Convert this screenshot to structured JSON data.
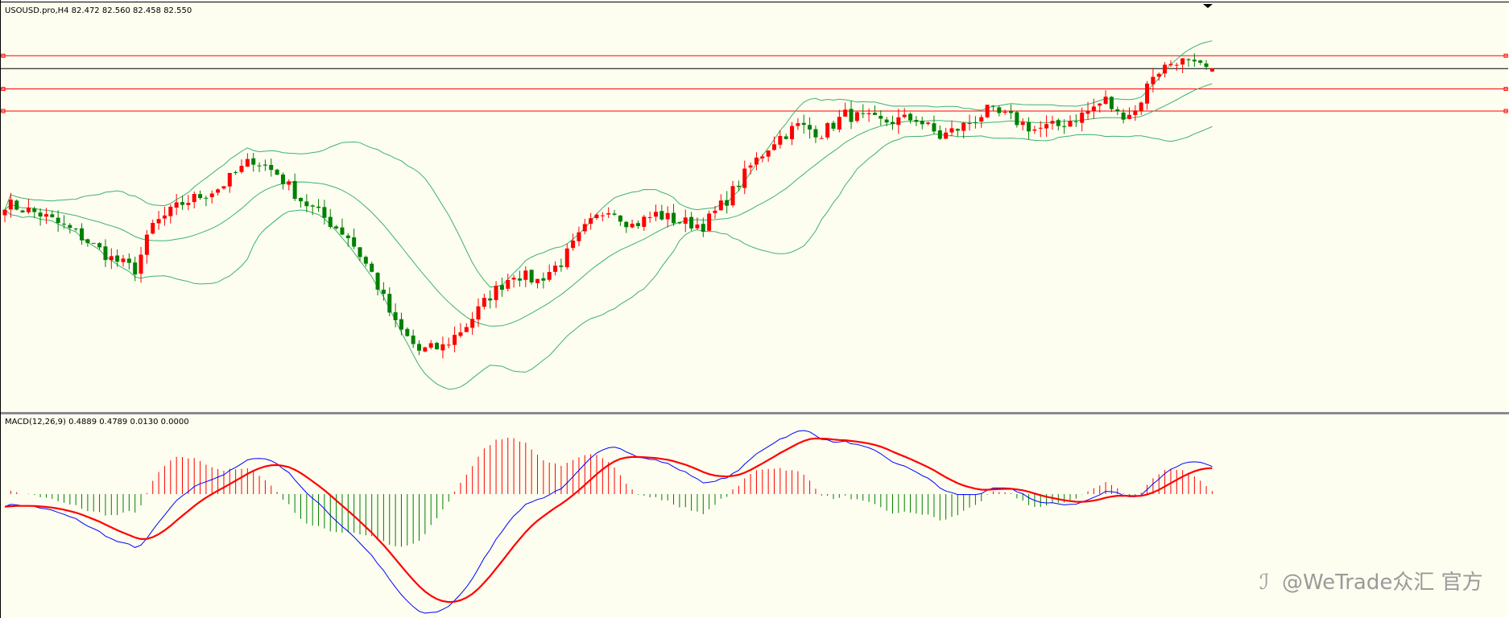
{
  "main_header": "USOUSD.pro,H4  82.472 82.560 82.458 82.550",
  "macd_header": "MACD(12,26,9) 0.4889 0.4789 0.0130 0.0000",
  "watermark": "@WeTrade众汇 官方",
  "colors": {
    "background": "#fdfdf0",
    "bull_candle": "#ff0000",
    "bear_candle": "#008000",
    "bollinger": "#3cb371",
    "hline": "#ff0000",
    "price_line": "#000000",
    "macd_line": "#0000ff",
    "signal_line": "#ff0000",
    "hist_positive": "#ff0000",
    "hist_negative": "#008000"
  },
  "chart_data": [
    {
      "type": "candlestick",
      "symbol": "USOUSD.pro",
      "timeframe": "H4",
      "ohlc": {
        "open": 82.472,
        "high": 82.56,
        "low": 82.458,
        "close": 82.55
      },
      "price_range": [
        73.5,
        83.8
      ],
      "price_anchors": [
        [
          0,
          78.9
        ],
        [
          6,
          78.6
        ],
        [
          12,
          78.1
        ],
        [
          18,
          77.4
        ],
        [
          22,
          77.1
        ],
        [
          25,
          78.3
        ],
        [
          30,
          78.9
        ],
        [
          36,
          79.3
        ],
        [
          42,
          80.1
        ],
        [
          46,
          79.7
        ],
        [
          50,
          79.0
        ],
        [
          54,
          78.5
        ],
        [
          58,
          78.0
        ],
        [
          62,
          77.0
        ],
        [
          66,
          75.6
        ],
        [
          70,
          74.9
        ],
        [
          74,
          75.0
        ],
        [
          78,
          75.6
        ],
        [
          82,
          76.4
        ],
        [
          86,
          77.0
        ],
        [
          90,
          76.8
        ],
        [
          94,
          77.3
        ],
        [
          98,
          78.2
        ],
        [
          102,
          78.8
        ],
        [
          106,
          78.3
        ],
        [
          110,
          78.6
        ],
        [
          114,
          78.4
        ],
        [
          118,
          78.3
        ],
        [
          122,
          79.0
        ],
        [
          126,
          79.9
        ],
        [
          130,
          80.6
        ],
        [
          134,
          81.0
        ],
        [
          138,
          80.8
        ],
        [
          142,
          81.3
        ],
        [
          148,
          81.1
        ],
        [
          154,
          81.2
        ],
        [
          158,
          80.7
        ],
        [
          162,
          81.0
        ],
        [
          166,
          81.4
        ],
        [
          170,
          81.2
        ],
        [
          174,
          80.9
        ],
        [
          178,
          81.0
        ],
        [
          182,
          81.3
        ],
        [
          186,
          81.7
        ],
        [
          188,
          81.3
        ],
        [
          191,
          81.4
        ],
        [
          194,
          82.4
        ],
        [
          198,
          82.8
        ],
        [
          201,
          82.6
        ],
        [
          204,
          82.5
        ]
      ],
      "horizontal_levels": [
        82.9,
        82.0,
        81.4
      ],
      "current_price": 82.55,
      "bollinger": "20-period bands"
    },
    {
      "type": "macd",
      "params": [
        12,
        26,
        9
      ],
      "values": {
        "macd": 0.4889,
        "signal": 0.4789,
        "histogram": 0.013,
        "extra": 0.0
      }
    }
  ]
}
